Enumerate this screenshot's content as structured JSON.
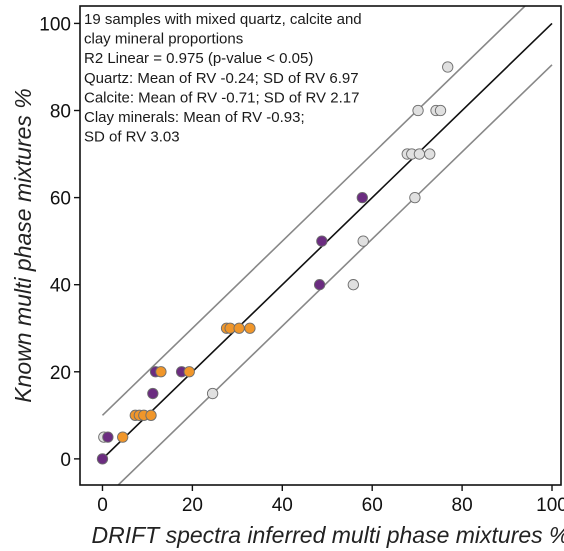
{
  "chart_data": {
    "type": "scatter",
    "xlabel": "DRIFT spectra inferred multi phase mixtures %",
    "ylabel": "Known multi phase mixtures %",
    "xlim": [
      -5,
      102
    ],
    "ylim": [
      -6,
      104
    ],
    "x_ticks": [
      0,
      20,
      40,
      60,
      80,
      100
    ],
    "y_ticks": [
      0,
      20,
      40,
      60,
      80,
      100
    ],
    "x_tick_labels": [
      "0",
      "20",
      "40",
      "60",
      "80",
      "100"
    ],
    "y_tick_labels": [
      "0",
      "20",
      "40",
      "60",
      "80",
      "100"
    ],
    "grid": false,
    "legend": "none",
    "annotation": [
      "19 samples with mixed quartz, calcite and",
      "clay mineral proportions",
      "R2 Linear = 0.975 (p-value  < 0.05)",
      "Quartz: Mean of RV -0.24; SD of RV 6.97",
      "Calcite: Mean of RV -0.71; SD of RV 2.17",
      "Clay minerals: Mean of RV -0.93;",
      "SD of RV 3.03"
    ],
    "reference_lines": [
      {
        "kind": "identity",
        "x": [
          0,
          100
        ],
        "y": [
          0,
          100
        ],
        "color": "#111111"
      },
      {
        "kind": "upper-bound",
        "x": [
          0,
          96.5
        ],
        "y": [
          10,
          106.5
        ],
        "color": "#888888"
      },
      {
        "kind": "lower-bound",
        "x": [
          3.5,
          100
        ],
        "y": [
          -6,
          90.5
        ],
        "color": "#888888"
      }
    ],
    "series": [
      {
        "color": "#e0e0e0",
        "points": [
          {
            "x": 0.3,
            "y": 5
          },
          {
            "x": 24.5,
            "y": 15
          },
          {
            "x": 55.8,
            "y": 40
          },
          {
            "x": 58,
            "y": 50
          },
          {
            "x": 69.5,
            "y": 60
          },
          {
            "x": 67.8,
            "y": 70
          },
          {
            "x": 68.8,
            "y": 70
          },
          {
            "x": 70.5,
            "y": 70
          },
          {
            "x": 72.8,
            "y": 70
          },
          {
            "x": 70.2,
            "y": 80
          },
          {
            "x": 74.2,
            "y": 80
          },
          {
            "x": 75.2,
            "y": 80
          },
          {
            "x": 76.8,
            "y": 90
          }
        ]
      },
      {
        "color": "#6b2c80",
        "points": [
          {
            "x": 0,
            "y": 0
          },
          {
            "x": 1.2,
            "y": 5
          },
          {
            "x": 11.2,
            "y": 15
          },
          {
            "x": 11.8,
            "y": 20
          },
          {
            "x": 17.6,
            "y": 20
          },
          {
            "x": 48.3,
            "y": 40
          },
          {
            "x": 48.8,
            "y": 50
          },
          {
            "x": 57.8,
            "y": 60
          }
        ]
      },
      {
        "color": "#f0962a",
        "points": [
          {
            "x": 4.5,
            "y": 5
          },
          {
            "x": 7.3,
            "y": 10
          },
          {
            "x": 8.2,
            "y": 10
          },
          {
            "x": 9.2,
            "y": 10
          },
          {
            "x": 10.8,
            "y": 10
          },
          {
            "x": 13,
            "y": 20
          },
          {
            "x": 19.3,
            "y": 20
          },
          {
            "x": 27.6,
            "y": 30
          },
          {
            "x": 28.4,
            "y": 30
          },
          {
            "x": 30.4,
            "y": 30
          },
          {
            "x": 32.8,
            "y": 30
          }
        ]
      }
    ]
  }
}
